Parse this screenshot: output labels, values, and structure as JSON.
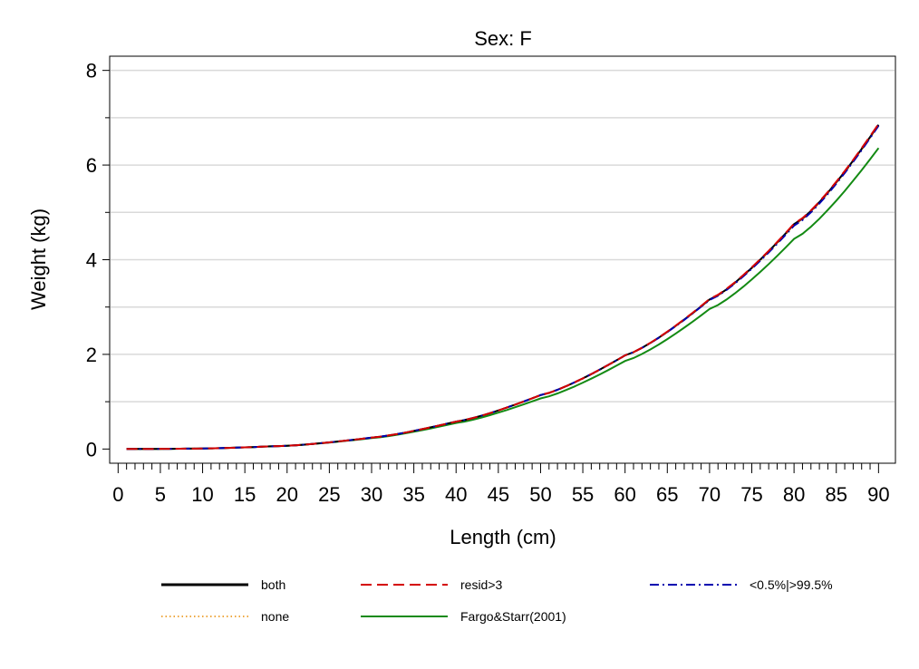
{
  "chart_data": {
    "type": "line",
    "title": "Sex: F",
    "xlabel": "Length (cm)",
    "ylabel": "Weight (kg)",
    "xlim": [
      -1,
      92
    ],
    "ylim": [
      -0.3,
      8.3
    ],
    "x_major_ticks": [
      0,
      5,
      10,
      15,
      20,
      25,
      30,
      35,
      40,
      45,
      50,
      55,
      60,
      65,
      70,
      75,
      80,
      85,
      90
    ],
    "x_tick_labels": [
      "0",
      "5",
      "10",
      "15",
      "20",
      "25",
      "30",
      "35",
      "40",
      "45",
      "50",
      "55",
      "60",
      "65",
      "70",
      "75",
      "80",
      "85",
      "90"
    ],
    "x_minor_step": 1,
    "y_major_ticks": [
      0,
      2,
      4,
      6,
      8
    ],
    "y_tick_labels": [
      "0",
      "2",
      "4",
      "6",
      "8"
    ],
    "y_grid_lines": [
      1,
      2,
      3,
      4,
      5,
      6,
      7,
      8
    ],
    "grid": true,
    "legend_position": "bottom",
    "x": [
      1,
      10,
      20,
      30,
      40,
      50,
      60,
      70,
      80,
      90
    ],
    "series": [
      {
        "name": "both",
        "color": "#000000",
        "dash": "solid",
        "values": [
          0.0,
          0.01,
          0.07,
          0.24,
          0.58,
          1.14,
          1.98,
          3.16,
          4.75,
          6.85
        ]
      },
      {
        "name": "resid>3",
        "color": "#d40000",
        "dash": "dashed",
        "values": [
          0.0,
          0.01,
          0.07,
          0.24,
          0.58,
          1.14,
          1.98,
          3.17,
          4.76,
          6.87
        ]
      },
      {
        "name": "<0.5%|>99.5%",
        "color": "#0000b0",
        "dash": "dashdot",
        "values": [
          0.0,
          0.01,
          0.07,
          0.24,
          0.58,
          1.14,
          1.98,
          3.15,
          4.72,
          6.83
        ]
      },
      {
        "name": "none",
        "color": "#e88a00",
        "dash": "dotted",
        "values": [
          0.0,
          0.01,
          0.07,
          0.24,
          0.58,
          1.13,
          1.97,
          3.15,
          4.73,
          6.83
        ]
      },
      {
        "name": "Fargo&Starr(2001)",
        "color": "#138a13",
        "dash": "solid",
        "values": [
          0.0,
          0.01,
          0.07,
          0.23,
          0.55,
          1.07,
          1.86,
          2.96,
          4.44,
          6.36
        ]
      }
    ]
  }
}
